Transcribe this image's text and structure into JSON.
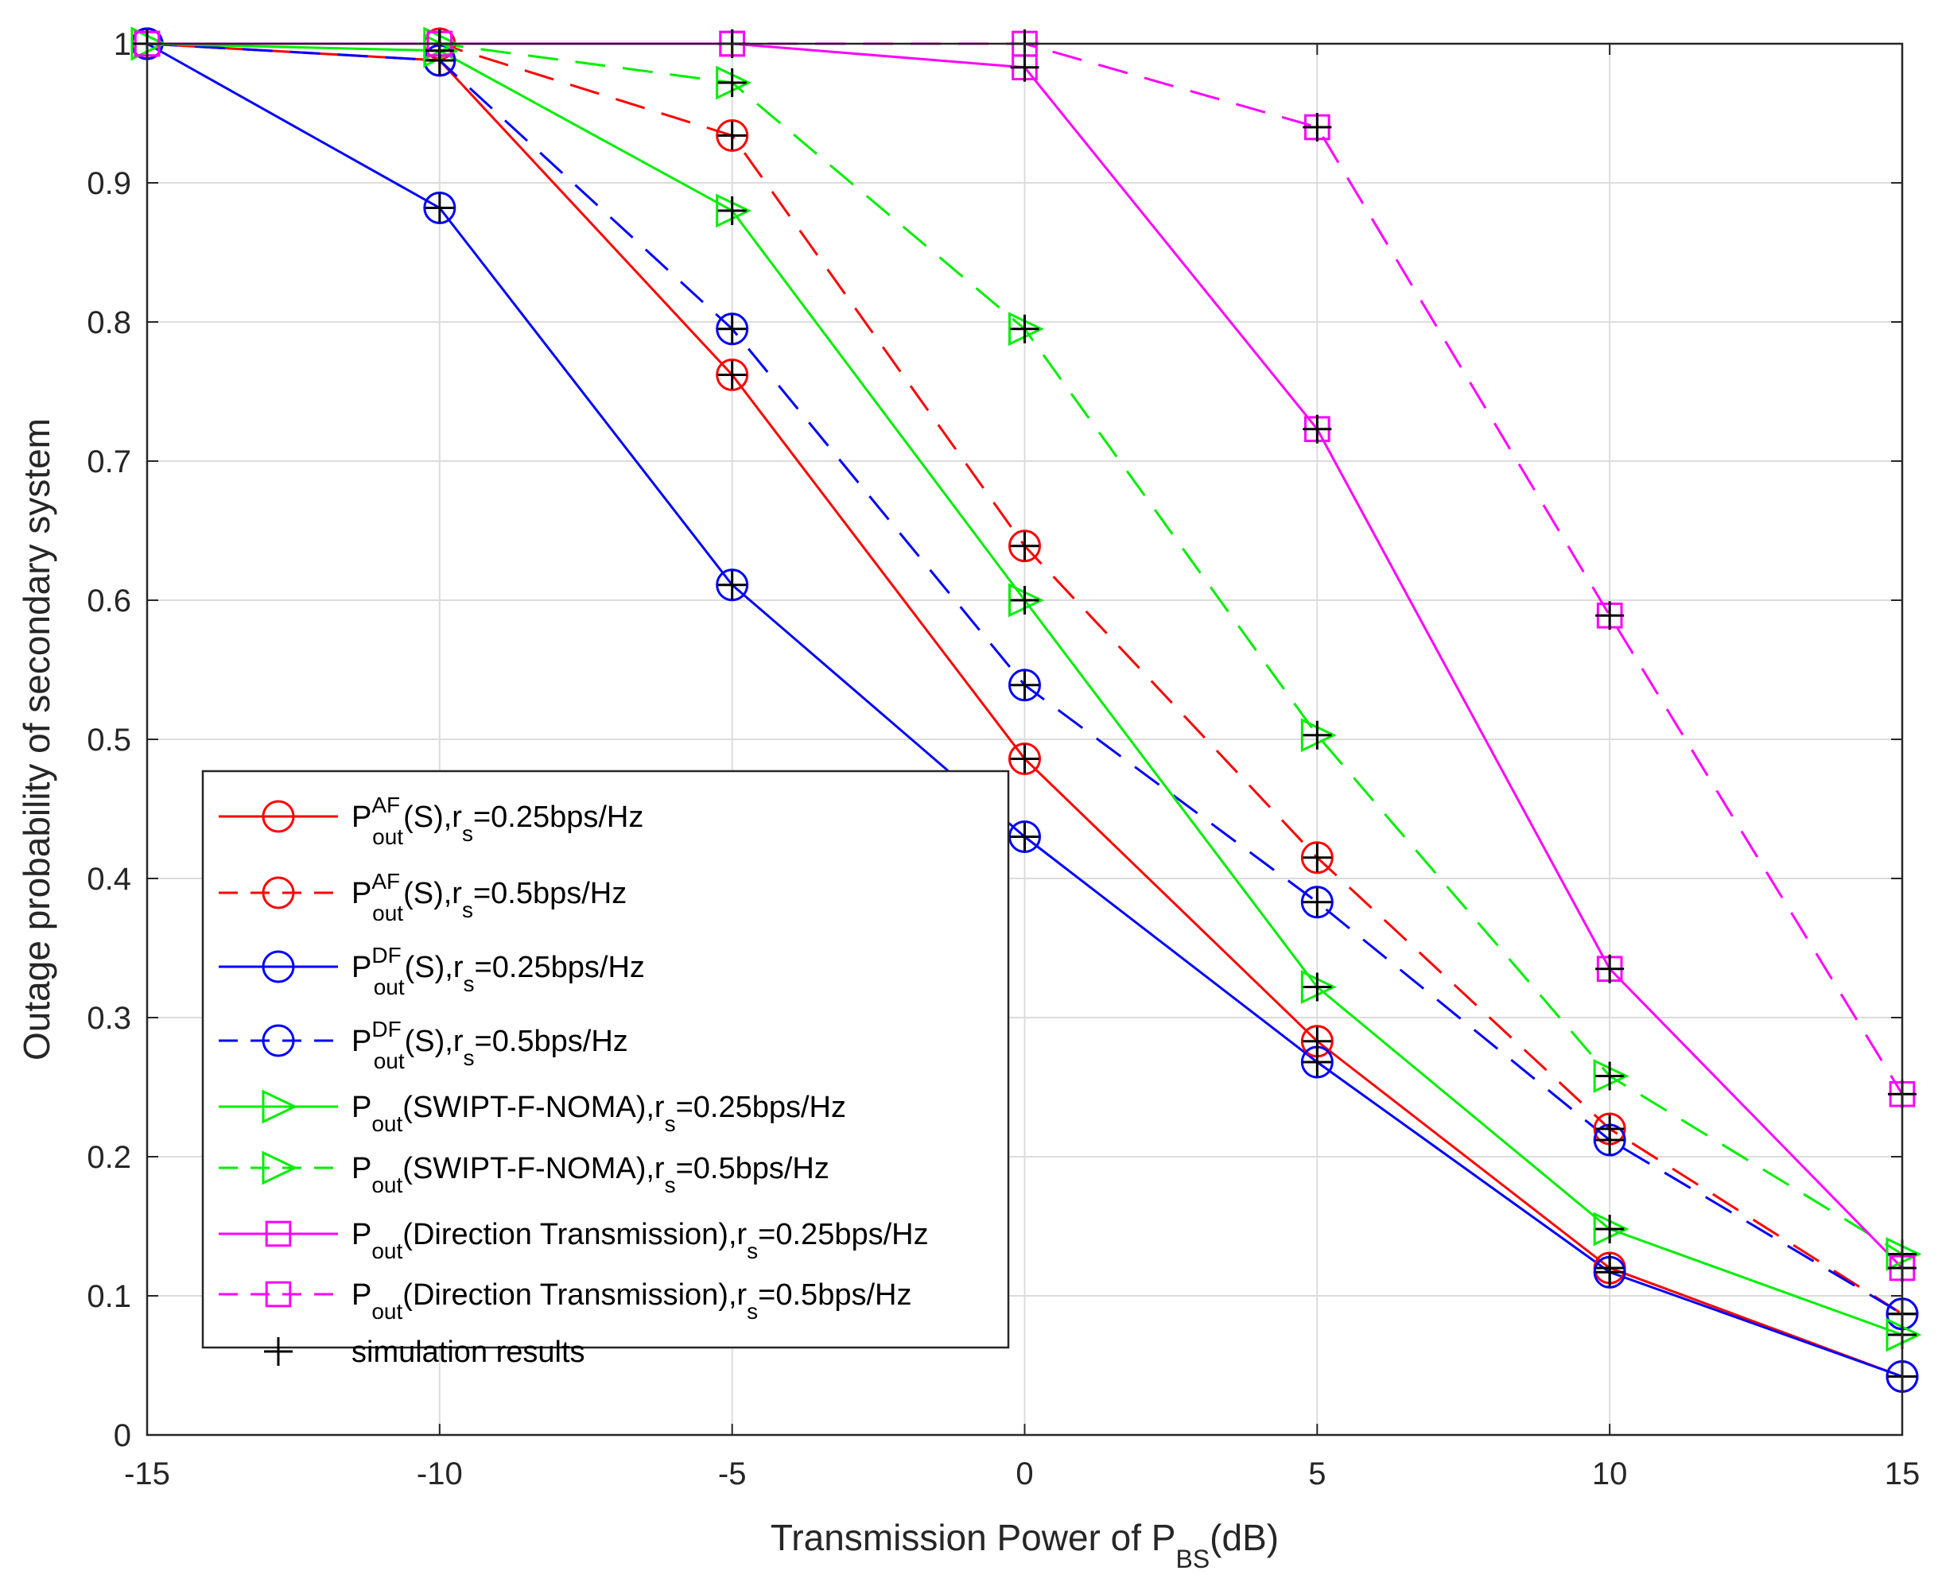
{
  "chart_data": {
    "type": "line",
    "title": "",
    "xlabel": {
      "prefix": "Transmission Power of P",
      "subscript": "BS",
      "suffix": "(dB)"
    },
    "ylabel": "Outage probability of secondary system",
    "x": [
      -15,
      -10,
      -5,
      0,
      5,
      10,
      15
    ],
    "xlim": [
      -15,
      15
    ],
    "ylim": [
      0,
      1
    ],
    "xticks": [
      "-15",
      "-10",
      "-5",
      "0",
      "5",
      "10",
      "15"
    ],
    "yticks": [
      "0",
      "0.1",
      "0.2",
      "0.3",
      "0.4",
      "0.5",
      "0.6",
      "0.7",
      "0.8",
      "0.9",
      "1"
    ],
    "grid": true,
    "legend_position": "bottom-left",
    "series": [
      {
        "name": "P_out^AF(S), r_s=0.25bps/Hz",
        "legend": {
          "base": "P",
          "sup": "AF",
          "sub": "out",
          "mid": "(S),r",
          "sub2": "s",
          "tail": "=0.25bps/Hz"
        },
        "color": "#ff0000",
        "dash": "solid",
        "marker": "circle",
        "values": [
          1.0,
          0.988,
          0.762,
          0.486,
          0.283,
          0.12,
          0.042
        ]
      },
      {
        "name": "P_out^AF(S), r_s=0.5bps/Hz",
        "legend": {
          "base": "P",
          "sup": "AF",
          "sub": "out",
          "mid": "(S),r",
          "sub2": "s",
          "tail": "=0.5bps/Hz"
        },
        "color": "#ff0000",
        "dash": "dashed",
        "marker": "circle",
        "values": [
          1.0,
          1.0,
          0.934,
          0.639,
          0.415,
          0.22,
          0.087
        ]
      },
      {
        "name": "P_out^DF(S), r_s=0.25bps/Hz",
        "legend": {
          "base": "P",
          "sup": "DF",
          "sub": "out",
          "mid": "(S),r",
          "sub2": "s",
          "tail": "=0.25bps/Hz"
        },
        "color": "#0000ff",
        "dash": "solid",
        "marker": "circle",
        "values": [
          1.0,
          0.882,
          0.611,
          0.43,
          0.268,
          0.117,
          0.042
        ]
      },
      {
        "name": "P_out^DF(S), r_s=0.5bps/Hz",
        "legend": {
          "base": "P",
          "sup": "DF",
          "sub": "out",
          "mid": "(S),r",
          "sub2": "s",
          "tail": "=0.5bps/Hz"
        },
        "color": "#0000ff",
        "dash": "dashed",
        "marker": "circle",
        "values": [
          1.0,
          0.988,
          0.795,
          0.539,
          0.383,
          0.212,
          0.087
        ]
      },
      {
        "name": "P_out(SWIPT-F-NOMA), r_s=0.25bps/Hz",
        "legend": {
          "base": "P",
          "sup": "",
          "sub": "out",
          "mid": "(SWIPT-F-NOMA),r",
          "sub2": "s",
          "tail": "=0.25bps/Hz"
        },
        "color": "#00ee00",
        "dash": "solid",
        "marker": "triangle-right",
        "values": [
          1.0,
          0.995,
          0.88,
          0.6,
          0.322,
          0.148,
          0.072
        ]
      },
      {
        "name": "P_out(SWIPT-F-NOMA), r_s=0.5bps/Hz",
        "legend": {
          "base": "P",
          "sup": "",
          "sub": "out",
          "mid": "(SWIPT-F-NOMA),r",
          "sub2": "s",
          "tail": "=0.5bps/Hz"
        },
        "color": "#00ee00",
        "dash": "dashed",
        "marker": "triangle-right",
        "values": [
          1.0,
          1.0,
          0.972,
          0.795,
          0.503,
          0.258,
          0.13
        ]
      },
      {
        "name": "P_out(Direction Transmission), r_s=0.25bps/Hz",
        "legend": {
          "base": "P",
          "sup": "",
          "sub": "out",
          "mid": "(Direction Transmission),r",
          "sub2": "s",
          "tail": "=0.25bps/Hz"
        },
        "color": "#ff00ff",
        "dash": "solid",
        "marker": "square",
        "values": [
          1.0,
          1.0,
          1.0,
          0.983,
          0.723,
          0.335,
          0.12
        ]
      },
      {
        "name": "P_out(Direction Transmission), r_s=0.5bps/Hz",
        "legend": {
          "base": "P",
          "sup": "",
          "sub": "out",
          "mid": "(Direction Transmission),r",
          "sub2": "s",
          "tail": "=0.5bps/Hz"
        },
        "color": "#ff00ff",
        "dash": "dashed",
        "marker": "square",
        "values": [
          1.0,
          1.0,
          1.0,
          1.0,
          0.94,
          0.589,
          0.245
        ]
      }
    ],
    "simulation": {
      "name": "simulation results",
      "color": "#000000",
      "marker": "plus",
      "series_refs": [
        0,
        1,
        2,
        3,
        4,
        5,
        6,
        7
      ]
    }
  }
}
